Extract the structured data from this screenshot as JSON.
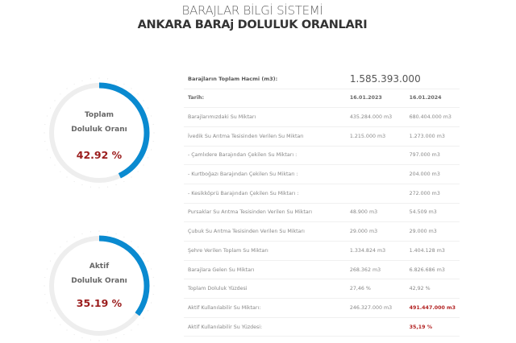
{
  "header": {
    "title": "BARAJLAR BİLGİ SİSTEMİ",
    "subtitle": "ANKARA BARAj DOLULUK ORANLARI"
  },
  "gauges": [
    {
      "line1": "Toplam",
      "line2": "Doluluk Oranı",
      "value": "42.92 %",
      "percent": 42.92
    },
    {
      "line1": "Aktif",
      "line2": "Doluluk Oranı",
      "value": "35.19 %",
      "percent": 35.19
    }
  ],
  "colors": {
    "gauge_fill": "#0a8ad0",
    "gauge_track": "#eeeeee",
    "highlight": "#b22222"
  },
  "table": {
    "total_label": "Barajların Toplam Hacmi (m3):",
    "total_value": "1.585.393.000",
    "date_label": "Tarih:",
    "date1": "16.01.2023",
    "date2": "16.01.2024",
    "rows": [
      {
        "label": "Barajlarımızdaki Su Miktarı",
        "v1": "435.284.000 m3",
        "v2": "680.404.000 m3"
      },
      {
        "label": "İvedik Su Arıtma Tesisinden Verilen Su Miktarı",
        "v1": "1.215.000 m3",
        "v2": "1.273.000 m3"
      },
      {
        "label": "- Çamlıdere Barajından Çekilen Su Miktarı :",
        "v1": "",
        "v2": "797.000 m3"
      },
      {
        "label": "- Kurtboğazı Barajından Çekilen Su Miktarı :",
        "v1": "",
        "v2": "204.000 m3"
      },
      {
        "label": "- Kesikköprü Barajından Çekilen Su Miktarı :",
        "v1": "",
        "v2": "272.000 m3"
      },
      {
        "label": "Pursaklar Su Arıtma Tesisinden Verilen Su Miktarı",
        "v1": "48.900 m3",
        "v2": "54.509 m3"
      },
      {
        "label": "Çubuk Su Arıtma Tesisinden Verilen Su Miktarı",
        "v1": "29.000 m3",
        "v2": "29.000 m3"
      },
      {
        "label": "Şehre Verilen Toplam Su Miktarı",
        "v1": "1.334.824 m3",
        "v2": "1.404.128 m3"
      },
      {
        "label": "Barajlara Gelen Su Miktarı",
        "v1": "268.362 m3",
        "v2": "6.826.686 m3"
      },
      {
        "label": "Toplam Doluluk Yüzdesi",
        "v1": "27,46 %",
        "v2": "42,92 %"
      },
      {
        "label": "Aktif Kullanılabilir Su Miktarı:",
        "v1": "246.327.000 m3",
        "v2": "491.447.000 m3"
      },
      {
        "label": "Aktif Kullanılabilir Su Yüzdesi:",
        "v1": "",
        "v2": "35,19 %"
      }
    ]
  }
}
